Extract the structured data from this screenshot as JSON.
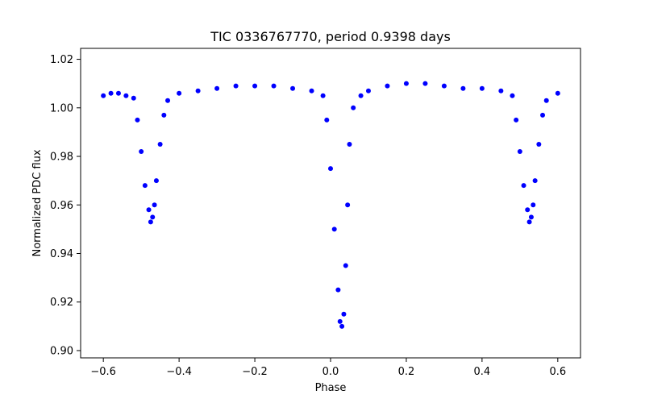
{
  "chart_data": {
    "type": "scatter",
    "title": "TIC 0336767770, period 0.9398 days",
    "xlabel": "Phase",
    "ylabel": "Normalized PDC flux",
    "xlim": [
      -0.66,
      0.66
    ],
    "ylim": [
      0.897,
      1.0245
    ],
    "xticks": [
      -0.6,
      -0.4,
      -0.2,
      0.0,
      0.2,
      0.4,
      0.6
    ],
    "xtick_labels": [
      "−0.6",
      "−0.4",
      "−0.2",
      "0.0",
      "0.2",
      "0.4",
      "0.6"
    ],
    "yticks": [
      0.9,
      0.92,
      0.94,
      0.96,
      0.98,
      1.0,
      1.02
    ],
    "ytick_labels": [
      "0.90",
      "0.92",
      "0.94",
      "0.96",
      "0.98",
      "1.00",
      "1.02"
    ],
    "grid": false,
    "marker_color": "#0000ff",
    "series": [
      {
        "values": [
          [
            -0.6,
            1.005
          ],
          [
            -0.58,
            1.006
          ],
          [
            -0.56,
            1.006
          ],
          [
            -0.54,
            1.005
          ],
          [
            -0.52,
            1.004
          ],
          [
            -0.51,
            0.995
          ],
          [
            -0.5,
            0.982
          ],
          [
            -0.49,
            0.968
          ],
          [
            -0.48,
            0.958
          ],
          [
            -0.475,
            0.953
          ],
          [
            -0.47,
            0.955
          ],
          [
            -0.465,
            0.96
          ],
          [
            -0.46,
            0.97
          ],
          [
            -0.45,
            0.985
          ],
          [
            -0.44,
            0.997
          ],
          [
            -0.43,
            1.003
          ],
          [
            -0.4,
            1.006
          ],
          [
            -0.35,
            1.007
          ],
          [
            -0.3,
            1.008
          ],
          [
            -0.25,
            1.009
          ],
          [
            -0.2,
            1.009
          ],
          [
            -0.15,
            1.009
          ],
          [
            -0.1,
            1.008
          ],
          [
            -0.05,
            1.007
          ],
          [
            -0.02,
            1.005
          ],
          [
            -0.01,
            0.995
          ],
          [
            0.0,
            0.975
          ],
          [
            0.01,
            0.95
          ],
          [
            0.02,
            0.925
          ],
          [
            0.025,
            0.912
          ],
          [
            0.03,
            0.91
          ],
          [
            0.035,
            0.915
          ],
          [
            0.04,
            0.935
          ],
          [
            0.045,
            0.96
          ],
          [
            0.05,
            0.985
          ],
          [
            0.06,
            1.0
          ],
          [
            0.08,
            1.005
          ],
          [
            0.1,
            1.007
          ],
          [
            0.15,
            1.009
          ],
          [
            0.2,
            1.01
          ],
          [
            0.25,
            1.01
          ],
          [
            0.3,
            1.009
          ],
          [
            0.35,
            1.008
          ],
          [
            0.4,
            1.008
          ],
          [
            0.45,
            1.007
          ],
          [
            0.48,
            1.005
          ],
          [
            0.49,
            0.995
          ],
          [
            0.5,
            0.982
          ],
          [
            0.51,
            0.968
          ],
          [
            0.52,
            0.958
          ],
          [
            0.525,
            0.953
          ],
          [
            0.53,
            0.955
          ],
          [
            0.535,
            0.96
          ],
          [
            0.54,
            0.97
          ],
          [
            0.55,
            0.985
          ],
          [
            0.56,
            0.997
          ],
          [
            0.57,
            1.003
          ],
          [
            0.6,
            1.006
          ]
        ]
      }
    ]
  }
}
